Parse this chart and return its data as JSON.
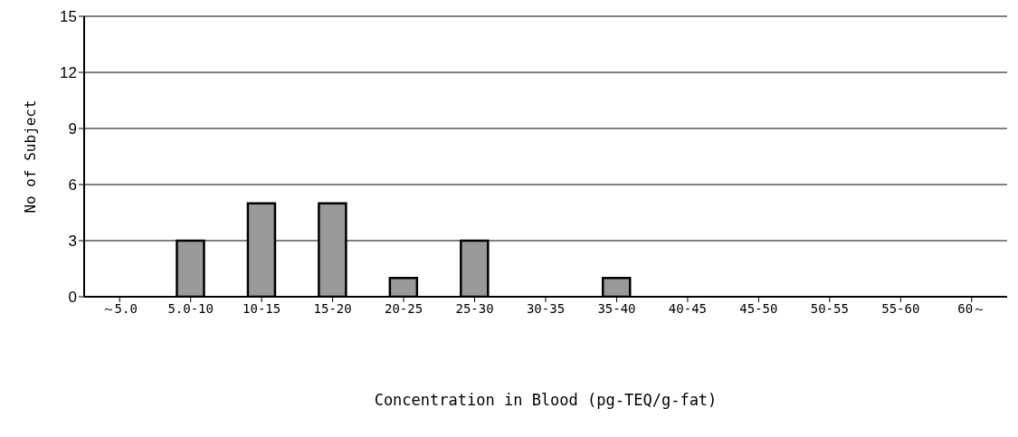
{
  "chart_data": {
    "type": "bar",
    "xlabel": "Concentration in Blood (pg-TEQ/g-fat)",
    "ylabel": "No of Subject",
    "categories": [
      "～5.0",
      "5.0-10",
      "10-15",
      "15-20",
      "20-25",
      "25-30",
      "30-35",
      "35-40",
      "40-45",
      "45-50",
      "50-55",
      "55-60",
      "60～"
    ],
    "values": [
      0,
      3,
      5,
      5,
      1,
      3,
      0,
      1,
      0,
      0,
      0,
      0,
      0
    ],
    "color": "#999999",
    "ylim": [
      0,
      15
    ],
    "yticks": [
      0,
      3,
      6,
      9,
      12,
      15
    ],
    "grid": "y"
  }
}
